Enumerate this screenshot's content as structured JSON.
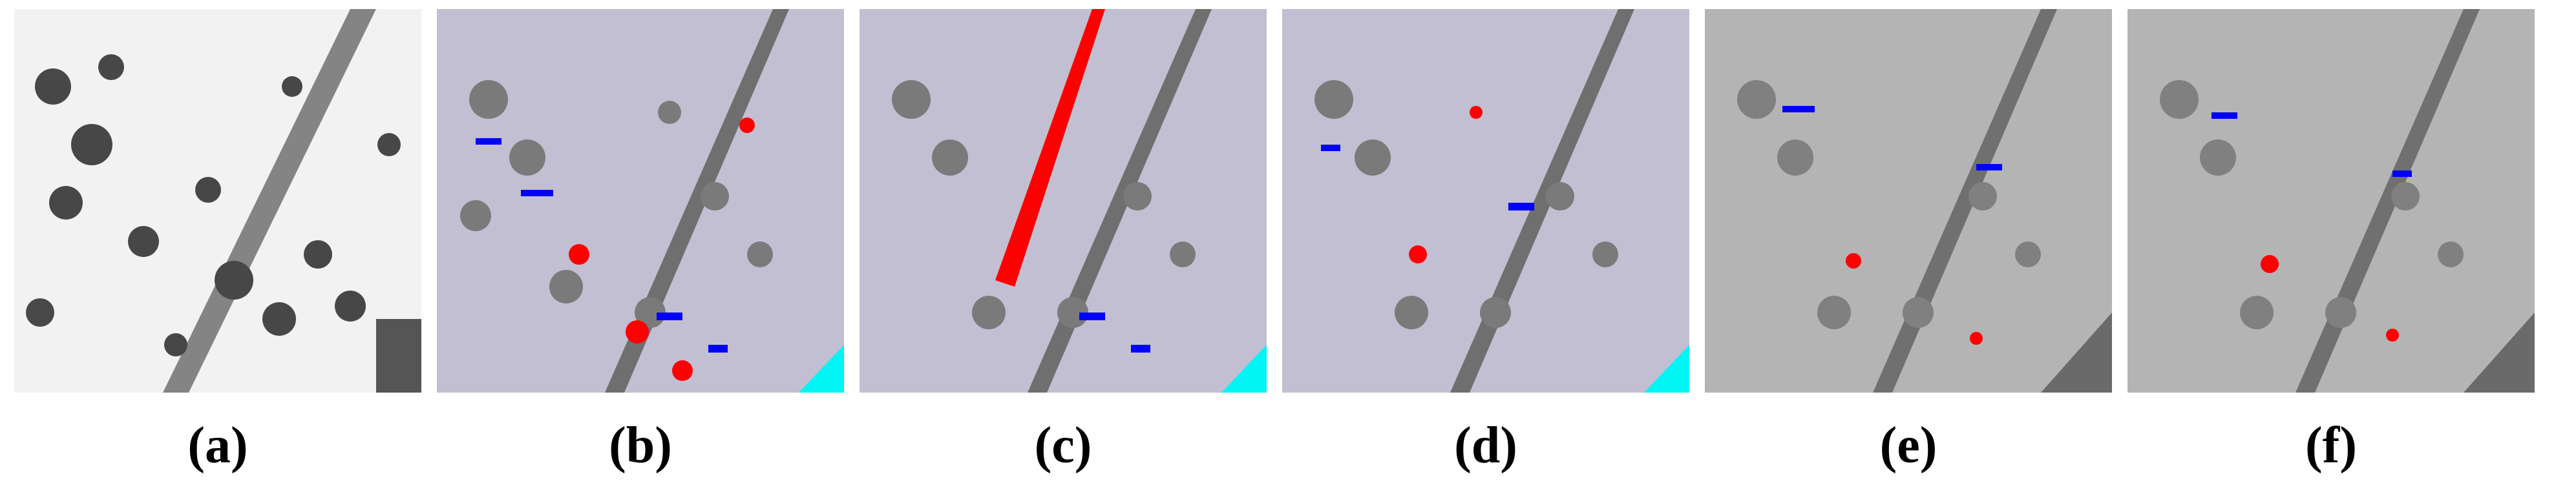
{
  "figure": {
    "panels": [
      {
        "id": "a",
        "label": "(a)",
        "kind": "aerial-photo",
        "colors": {
          "background": "#f2f2f2",
          "object": "#2a2a2a"
        }
      },
      {
        "id": "b",
        "label": "(b)",
        "kind": "classification-map",
        "colors": {
          "road": "#c2bfd2",
          "tree": "#7a7a7a",
          "trunk": "#6f6f6f",
          "false_positive": "#ff0000",
          "false_negative": "#0000ff",
          "water": "#00f5f5"
        }
      },
      {
        "id": "c",
        "label": "(c)",
        "kind": "classification-map",
        "colors": {
          "road": "#c2bfd2",
          "tree": "#7a7a7a",
          "trunk": "#6f6f6f",
          "false_positive": "#ff0000",
          "false_negative": "#0000ff",
          "water": "#00f5f5"
        }
      },
      {
        "id": "d",
        "label": "(d)",
        "kind": "classification-map",
        "colors": {
          "road": "#c2bfd2",
          "tree": "#7a7a7a",
          "trunk": "#6f6f6f",
          "false_positive": "#ff0000",
          "false_negative": "#0000ff",
          "water": "#00f5f5"
        }
      },
      {
        "id": "e",
        "label": "(e)",
        "kind": "classification-map",
        "colors": {
          "road": "#b4b4b4",
          "tree": "#808080",
          "trunk": "#707070",
          "false_positive": "#ff0000",
          "false_negative": "#0000ff",
          "water": "#6a6a6a"
        }
      },
      {
        "id": "f",
        "label": "(f)",
        "kind": "classification-map",
        "colors": {
          "road": "#b4b4b4",
          "tree": "#808080",
          "trunk": "#707070",
          "false_positive": "#ff0000",
          "false_negative": "#0000ff",
          "water": "#6a6a6a"
        }
      }
    ]
  }
}
